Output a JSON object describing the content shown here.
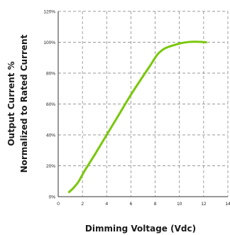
{
  "chart_data": {
    "type": "line",
    "title": "",
    "xlabel": "Dimming Voltage (Vdc)",
    "ylabel_line1": "Output Current %",
    "ylabel_line2": "Normalized to Rated Current",
    "xlim": [
      0,
      14
    ],
    "ylim": [
      0,
      120
    ],
    "x_ticks": [
      0,
      2,
      4,
      6,
      8,
      10,
      12,
      14
    ],
    "x_tick_labels": [
      "0",
      "2",
      "4",
      "6",
      "8",
      "10",
      "12",
      "14"
    ],
    "y_ticks": [
      0,
      20,
      40,
      60,
      80,
      100,
      120
    ],
    "y_tick_labels": [
      "0%",
      "20%",
      "40%",
      "60%",
      "80%",
      "100%",
      "120%"
    ],
    "grid": true,
    "series": [
      {
        "color": "#7ac70c",
        "x": [
          0.9,
          1.3,
          1.7,
          2.2,
          3.0,
          4.0,
          5.0,
          6.0,
          7.0,
          7.6,
          8.0,
          8.3,
          8.8,
          9.5,
          10.2,
          10.8,
          11.5,
          12.2
        ],
        "y": [
          3,
          6,
          10,
          17,
          27,
          40,
          53,
          66,
          78,
          85,
          90,
          93,
          96,
          98,
          99.5,
          100.2,
          100.3,
          100
        ]
      }
    ]
  }
}
